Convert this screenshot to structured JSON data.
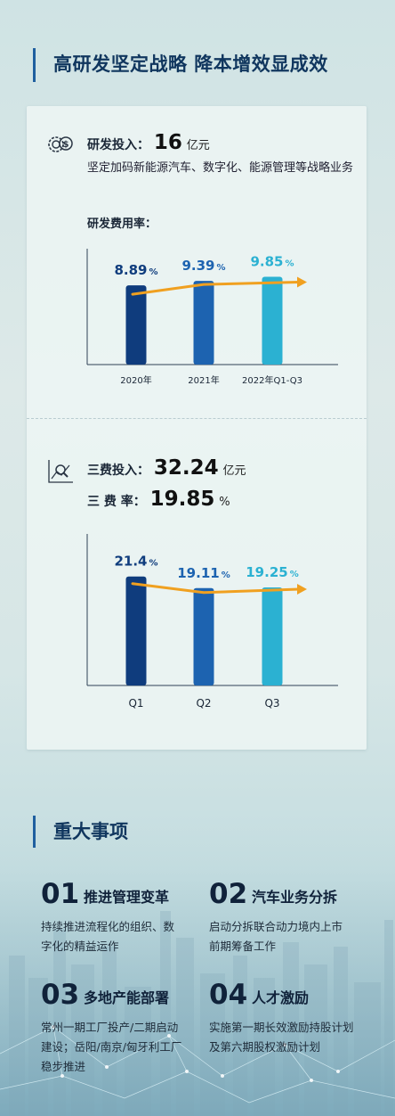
{
  "header": {
    "title": "高研发坚定战略 降本增效显成效"
  },
  "rd": {
    "invest_label": "研发投入：",
    "invest_value": "16",
    "invest_unit": "亿元",
    "desc": "坚定加码新能源汽车、数字化、能源管理等战略业务",
    "rate_label": "研发费用率："
  },
  "expense": {
    "invest_label": "三费投入：",
    "invest_value": "32.24",
    "invest_unit": "亿元",
    "rate_label": "三 费 率：",
    "rate_value": "19.85",
    "rate_unit": "%"
  },
  "chart_data": [
    {
      "type": "bar",
      "categories": [
        "2020年",
        "2021年",
        "2022年Q1-Q3"
      ],
      "values": [
        8.89,
        9.39,
        9.85
      ],
      "value_labels": [
        "8.89",
        "9.39",
        "9.85"
      ],
      "unit": "%",
      "colors": [
        "#0f3c7d",
        "#1d63b0",
        "#2bb1d2"
      ],
      "trend_color": "#f0a020",
      "ylim": [
        0,
        12
      ]
    },
    {
      "type": "bar",
      "categories": [
        "Q1",
        "Q2",
        "Q3"
      ],
      "values": [
        21.4,
        19.11,
        19.25
      ],
      "value_labels": [
        "21.4",
        "19.11",
        "19.25"
      ],
      "unit": "%",
      "colors": [
        "#0f3c7d",
        "#1d63b0",
        "#2bb1d2"
      ],
      "trend_color": "#f0a020",
      "ylim": [
        0,
        28
      ]
    }
  ],
  "events": {
    "title": "重大事项",
    "items": [
      {
        "num": "01",
        "title": "推进管理变革",
        "desc": "持续推进流程化的组织、数字化的精益运作"
      },
      {
        "num": "02",
        "title": "汽车业务分拆",
        "desc": "启动分拆联合动力境内上市前期筹备工作"
      },
      {
        "num": "03",
        "title": "多地产能部署",
        "desc": "常州一期工厂投产/二期启动建设；岳阳/南京/匈牙利工厂稳步推进"
      },
      {
        "num": "04",
        "title": "人才激励",
        "desc": "实施第一期长效激励持股计划及第六期股权激励计划"
      }
    ]
  }
}
